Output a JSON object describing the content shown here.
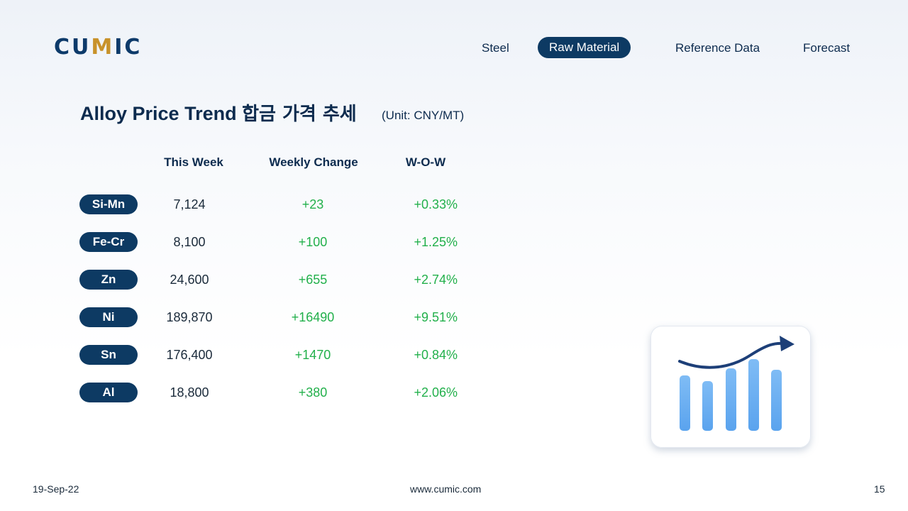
{
  "brand": {
    "logo_pre": "CU",
    "logo_accent": "M",
    "logo_post": "IC",
    "accent_color": "#c8922a",
    "primary_color": "#0d3a63"
  },
  "nav": {
    "items": [
      {
        "label": "Steel",
        "active": false
      },
      {
        "label": "Raw Material",
        "active": true
      },
      {
        "label": "Reference Data",
        "active": false
      },
      {
        "label": "Forecast",
        "active": false
      }
    ]
  },
  "title": {
    "en": "Alloy Price Trend",
    "kr": "합금 가격 추세",
    "unit": "(Unit: CNY/MT)"
  },
  "table": {
    "headers": {
      "this_week": "This Week",
      "weekly_change": "Weekly Change",
      "wow": "W-O-W"
    },
    "rows": [
      {
        "metal": "Si-Mn",
        "this_week": "7,124",
        "weekly_change": "+23",
        "wow": "+0.33%"
      },
      {
        "metal": "Fe-Cr",
        "this_week": "8,100",
        "weekly_change": "+100",
        "wow": "+1.25%"
      },
      {
        "metal": "Zn",
        "this_week": "24,600",
        "weekly_change": "+655",
        "wow": "+2.74%"
      },
      {
        "metal": "Ni",
        "this_week": "189,870",
        "weekly_change": "+16490",
        "wow": "+9.51%"
      },
      {
        "metal": "Sn",
        "this_week": "176,400",
        "weekly_change": "+1470",
        "wow": "+0.84%"
      },
      {
        "metal": "Al",
        "this_week": "18,800",
        "weekly_change": "+380",
        "wow": "+2.06%"
      }
    ],
    "positive_color": "#22b04b"
  },
  "illustration": {
    "icon": "bar-chart-trend-icon"
  },
  "footer": {
    "date": "19-Sep-22",
    "website": "www.cumic.com",
    "page": "15"
  }
}
